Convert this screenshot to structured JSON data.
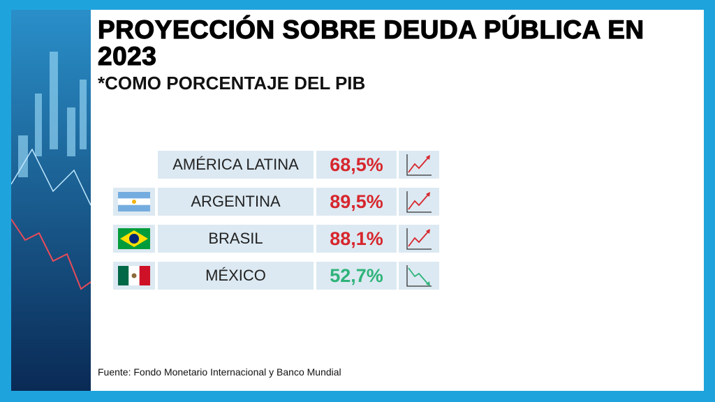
{
  "header": {
    "title": "PROYECCIÓN SOBRE DEUDA PÚBLICA EN 2023",
    "subtitle": "*COMO PORCENTAJE DEL PIB"
  },
  "table": {
    "rows": [
      {
        "name": "AMÉRICA LATINA",
        "value": "68,5%",
        "color": "#d7262d"
      },
      {
        "name": "ARGENTINA",
        "value": "89,5%",
        "color": "#d7262d"
      },
      {
        "name": "BRASIL",
        "value": "88,1%",
        "color": "#d7262d"
      },
      {
        "name": "MÉXICO",
        "value": "52,7%",
        "color": "#2fb37a"
      }
    ]
  },
  "footer": {
    "source": "Fuente: Fondo Monetario Internacional y Banco Mundial"
  }
}
